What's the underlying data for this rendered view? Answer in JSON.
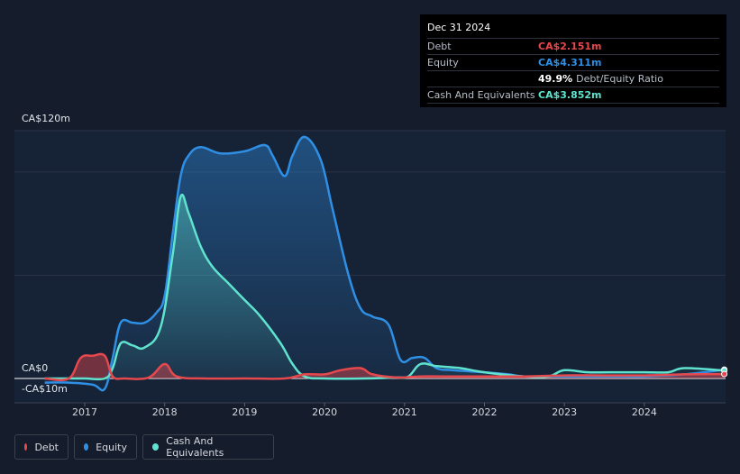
{
  "tooltip": {
    "date": "Dec 31 2024",
    "rows": [
      {
        "label": "Debt",
        "value": "CA$2.151m",
        "color": "#e5484d"
      },
      {
        "label": "Equity",
        "value": "CA$4.311m",
        "color": "#2f8fe4"
      },
      {
        "label": "",
        "value": "49.9%",
        "extra": "Debt/Equity Ratio",
        "color": "#ffffff"
      },
      {
        "label": "Cash And Equivalents",
        "value": "CA$3.852m",
        "color": "#5fe3cf"
      }
    ]
  },
  "axis_labels": {
    "top": "CA$120m",
    "zero": "CA$0",
    "bottom": "-CA$10m"
  },
  "legend": [
    {
      "label": "Debt",
      "color": "#e5484d"
    },
    {
      "label": "Equity",
      "color": "#2f8fe4"
    },
    {
      "label": "Cash And Equivalents",
      "color": "#5fe3cf"
    }
  ],
  "chart_data": {
    "type": "area",
    "ylim": [
      -10,
      120
    ],
    "x_ticks": [
      "2017",
      "2018",
      "2019",
      "2020",
      "2021",
      "2022",
      "2023",
      "2024"
    ],
    "series": [
      {
        "name": "Debt",
        "color": "#e5484d",
        "points": [
          [
            2016.5,
            0
          ],
          [
            2016.8,
            0
          ],
          [
            2016.95,
            10
          ],
          [
            2017.1,
            11
          ],
          [
            2017.25,
            11
          ],
          [
            2017.35,
            1
          ],
          [
            2017.5,
            0
          ],
          [
            2017.8,
            0.5
          ],
          [
            2018.0,
            7
          ],
          [
            2018.15,
            1
          ],
          [
            2018.5,
            0
          ],
          [
            2019.0,
            0
          ],
          [
            2019.5,
            0
          ],
          [
            2019.75,
            2
          ],
          [
            2020.0,
            2
          ],
          [
            2020.2,
            4
          ],
          [
            2020.45,
            5
          ],
          [
            2020.6,
            2
          ],
          [
            2020.9,
            0.5
          ],
          [
            2021.2,
            1
          ],
          [
            2021.5,
            1
          ],
          [
            2022.0,
            1
          ],
          [
            2022.5,
            1
          ],
          [
            2023.0,
            1.5
          ],
          [
            2023.5,
            1.5
          ],
          [
            2024.0,
            1.5
          ],
          [
            2024.5,
            2
          ],
          [
            2025.0,
            2.151
          ]
        ]
      },
      {
        "name": "Equity",
        "color": "#2f8fe4",
        "points": [
          [
            2016.5,
            -2
          ],
          [
            2016.8,
            -2
          ],
          [
            2017.1,
            -3
          ],
          [
            2017.25,
            -5
          ],
          [
            2017.35,
            10
          ],
          [
            2017.45,
            27
          ],
          [
            2017.6,
            27
          ],
          [
            2017.75,
            27
          ],
          [
            2017.9,
            32
          ],
          [
            2018.0,
            40
          ],
          [
            2018.1,
            70
          ],
          [
            2018.2,
            98
          ],
          [
            2018.3,
            108
          ],
          [
            2018.45,
            112
          ],
          [
            2018.7,
            109
          ],
          [
            2019.0,
            110
          ],
          [
            2019.25,
            113
          ],
          [
            2019.35,
            108
          ],
          [
            2019.5,
            98
          ],
          [
            2019.6,
            108
          ],
          [
            2019.75,
            117
          ],
          [
            2019.95,
            106
          ],
          [
            2020.1,
            82
          ],
          [
            2020.3,
            50
          ],
          [
            2020.45,
            34
          ],
          [
            2020.6,
            30
          ],
          [
            2020.8,
            26
          ],
          [
            2020.95,
            9
          ],
          [
            2021.1,
            10
          ],
          [
            2021.25,
            10
          ],
          [
            2021.4,
            5
          ],
          [
            2021.6,
            4
          ],
          [
            2022.0,
            3
          ],
          [
            2022.3,
            2
          ],
          [
            2022.5,
            1
          ],
          [
            2023.0,
            1
          ],
          [
            2023.5,
            1
          ],
          [
            2024.0,
            1
          ],
          [
            2024.5,
            2
          ],
          [
            2025.0,
            4.311
          ]
        ]
      },
      {
        "name": "Cash And Equivalents",
        "color": "#5fe3cf",
        "points": [
          [
            2016.5,
            0
          ],
          [
            2016.8,
            0
          ],
          [
            2017.0,
            0
          ],
          [
            2017.25,
            0
          ],
          [
            2017.35,
            5
          ],
          [
            2017.45,
            17
          ],
          [
            2017.6,
            16
          ],
          [
            2017.75,
            15
          ],
          [
            2017.95,
            25
          ],
          [
            2018.1,
            60
          ],
          [
            2018.2,
            88
          ],
          [
            2018.3,
            80
          ],
          [
            2018.45,
            64
          ],
          [
            2018.6,
            54
          ],
          [
            2018.8,
            46
          ],
          [
            2019.0,
            38
          ],
          [
            2019.2,
            30
          ],
          [
            2019.45,
            17
          ],
          [
            2019.6,
            7
          ],
          [
            2019.75,
            1
          ],
          [
            2020.0,
            0
          ],
          [
            2020.5,
            0
          ],
          [
            2020.9,
            0.5
          ],
          [
            2021.05,
            1
          ],
          [
            2021.2,
            7
          ],
          [
            2021.4,
            6
          ],
          [
            2021.7,
            5
          ],
          [
            2022.0,
            3
          ],
          [
            2022.5,
            1
          ],
          [
            2022.8,
            1
          ],
          [
            2023.0,
            4
          ],
          [
            2023.3,
            3
          ],
          [
            2023.7,
            3
          ],
          [
            2024.0,
            3
          ],
          [
            2024.3,
            3
          ],
          [
            2024.5,
            5
          ],
          [
            2025.0,
            3.852
          ]
        ]
      }
    ]
  }
}
